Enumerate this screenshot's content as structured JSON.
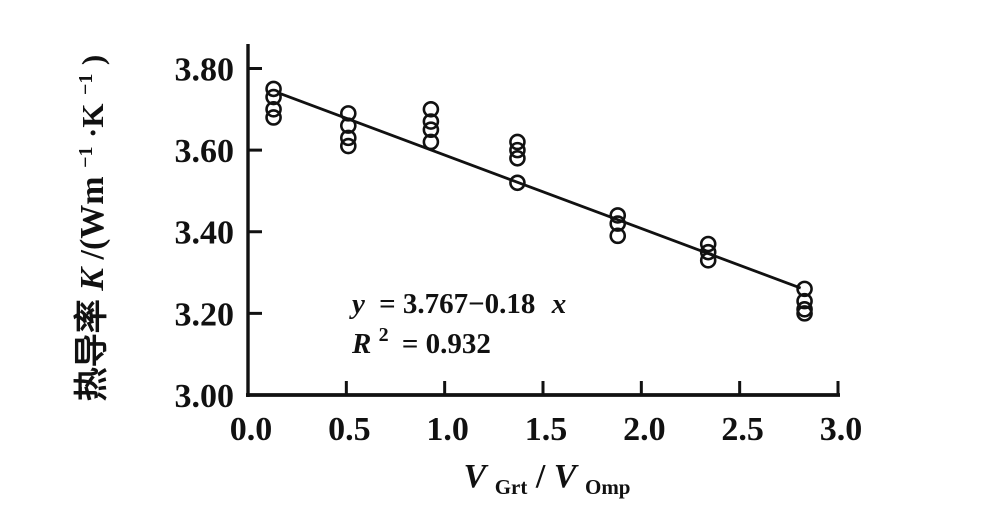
{
  "figure": {
    "background": "#ffffff",
    "ink_color": "#111111"
  },
  "chart_data": {
    "type": "scatter",
    "title": "",
    "marker": "open-circle",
    "grid": false,
    "legend": "none",
    "xlim": [
      0.0,
      3.0
    ],
    "ylim": [
      3.0,
      3.86
    ],
    "xticks": [
      "0.0",
      "0.5",
      "1.0",
      "1.5",
      "2.0",
      "2.5",
      "3.0"
    ],
    "xtick_values": [
      0.0,
      0.5,
      1.0,
      1.5,
      2.0,
      2.5,
      3.0
    ],
    "yticks": [
      "3.00",
      "3.20",
      "3.40",
      "3.60",
      "3.80"
    ],
    "ytick_values": [
      3.0,
      3.2,
      3.4,
      3.6,
      3.8
    ],
    "xlabel": {
      "var1": "V",
      "sub1": "Grt",
      "slash": "/",
      "var2": "V",
      "sub2": "Omp"
    },
    "ylabel": {
      "prefix": "热导率",
      "symbol": "K",
      "unit_open": "/(Wm",
      "sup1": "−1",
      "unit_mid": "·K",
      "sup2": "−1",
      "unit_close": ")"
    },
    "clusters": [
      {
        "x": 0.13,
        "ys": [
          3.75,
          3.73,
          3.7,
          3.68
        ]
      },
      {
        "x": 0.51,
        "ys": [
          3.69,
          3.66,
          3.63,
          3.61
        ]
      },
      {
        "x": 0.93,
        "ys": [
          3.7,
          3.67,
          3.65,
          3.62
        ]
      },
      {
        "x": 1.37,
        "ys": [
          3.62,
          3.6,
          3.58,
          3.52
        ]
      },
      {
        "x": 1.88,
        "ys": [
          3.44,
          3.42,
          3.39
        ]
      },
      {
        "x": 2.34,
        "ys": [
          3.37,
          3.35,
          3.33
        ]
      },
      {
        "x": 2.83,
        "ys": [
          3.26,
          3.23,
          3.21,
          3.2
        ]
      }
    ],
    "fit_line": {
      "x1": 0.15,
      "y1": 3.741,
      "x2": 2.81,
      "y2": 3.262,
      "intercept": 3.767,
      "slope": -0.18,
      "r_squared": 0.932
    },
    "annotation": {
      "line1_lhs": "y",
      "line1_eq": "= 3.767−0.18",
      "line1_var": "x",
      "line2_symbol": "R",
      "line2_sup": "2",
      "line2_eq": "= 0.932"
    }
  }
}
